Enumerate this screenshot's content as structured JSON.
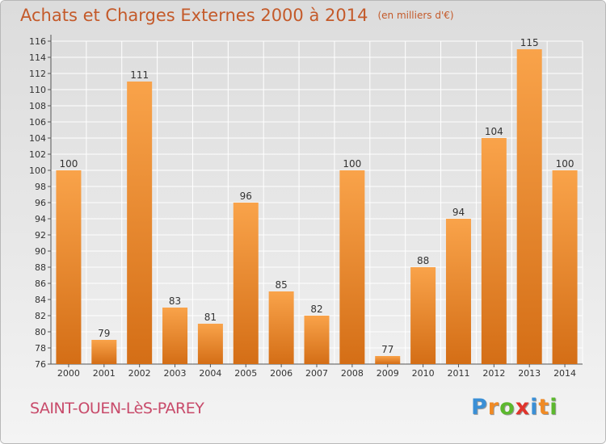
{
  "title": "Achats et Charges Externes 2000 à 2014",
  "unit_note": "(en milliers d'€)",
  "commune": "SAINT-OUEN-LèS-PAREY",
  "logo": {
    "text": "Proxiti",
    "letter_colors": [
      "#3a8fd6",
      "#f08a24",
      "#5cb82e",
      "#e0342c",
      "#3a8fd6",
      "#f08a24",
      "#5cb82e"
    ]
  },
  "colors": {
    "bar_top": "#f9a34a",
    "bar_bottom": "#d46e16",
    "title": "#c45a2a",
    "commune": "#c84a6a"
  },
  "chart_data": {
    "type": "bar",
    "title": "Achats et Charges Externes 2000 à 2014",
    "subtitle": "(en milliers d'€)",
    "categories": [
      "2000",
      "2001",
      "2002",
      "2003",
      "2004",
      "2005",
      "2006",
      "2007",
      "2008",
      "2009",
      "2010",
      "2011",
      "2012",
      "2013",
      "2014"
    ],
    "values": [
      100,
      79,
      111,
      83,
      81,
      96,
      85,
      82,
      100,
      77,
      88,
      94,
      104,
      115,
      100
    ],
    "ylim": [
      76,
      116
    ],
    "ytick_step": 2,
    "grid": true
  }
}
